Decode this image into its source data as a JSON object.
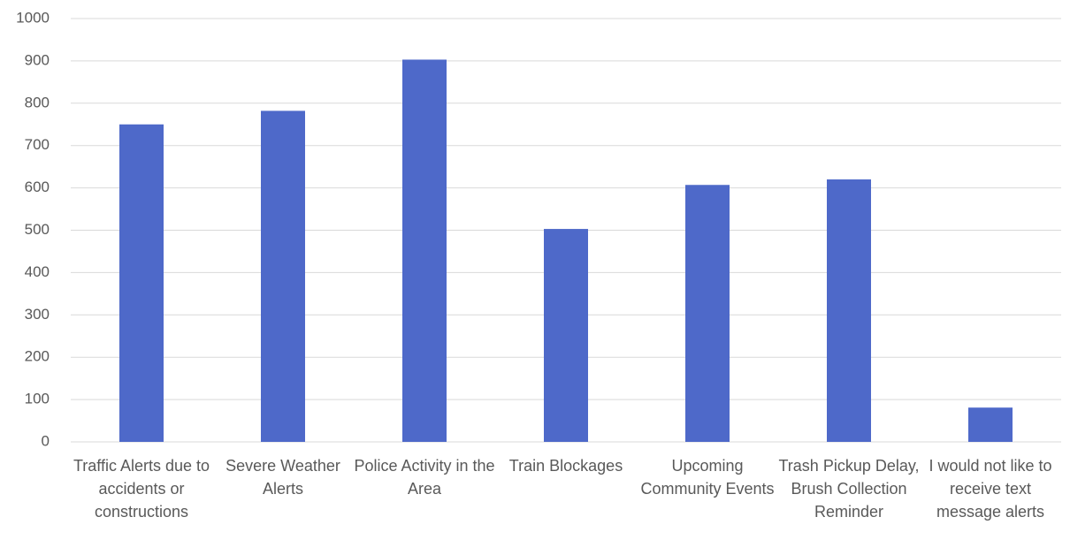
{
  "chart_data": {
    "type": "bar",
    "categories": [
      "Traffic Alerts due to accidents or constructions",
      "Severe Weather Alerts",
      "Police Activity in the Area",
      "Train Blockages",
      "Upcoming Community Events",
      "Trash Pickup Delay, Brush Collection Reminder",
      "I would not like to receive text message alerts"
    ],
    "values": [
      750,
      782,
      903,
      503,
      607,
      620,
      81
    ],
    "color": "#4e69c9",
    "ylim": [
      0,
      1000
    ],
    "yticks": [
      0,
      100,
      200,
      300,
      400,
      500,
      600,
      700,
      800,
      900,
      1000
    ],
    "grid": true
  }
}
